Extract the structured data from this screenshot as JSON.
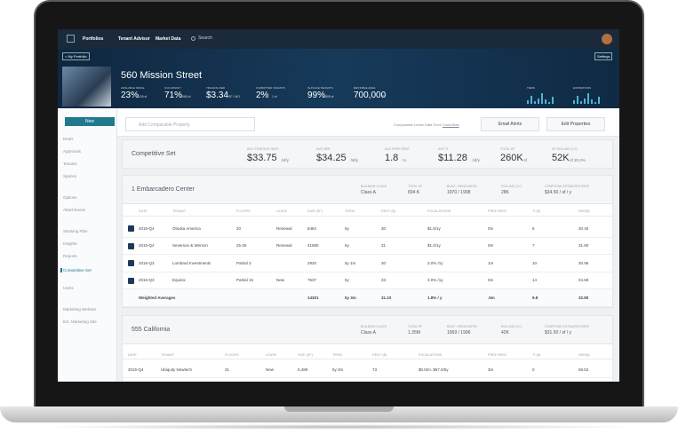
{
  "nav": {
    "items": [
      "Portfolios",
      "Tenant Advisor",
      "Market Data"
    ],
    "search": "Search"
  },
  "header": {
    "back": "< My Portfolio",
    "settings": "Settings",
    "title": "560 Mission Street",
    "stats": [
      {
        "label": "AVAILABLE SPACE",
        "value": "23%",
        "sub": "1108 sf"
      },
      {
        "label": "OCCUPANCY",
        "value": "71%",
        "sub": "4968 sf"
      },
      {
        "label": "TRAILING NER",
        "value": "$3.34",
        "sub": "SF / MO"
      },
      {
        "label": "COMMITTED TENANTS",
        "value": "2%",
        "sub": "1 sf"
      },
      {
        "label": "IN-PLACE TENANTS",
        "value": "99%",
        "sub": "4808 sf"
      },
      {
        "label": "RENTABLE AREA",
        "value": "700,000",
        "sub": "SF"
      }
    ],
    "charts": [
      "TIERS",
      "EXPIRATIONS"
    ]
  },
  "sidebar": {
    "button": "New",
    "items": [
      "Deals",
      "Approvals",
      "Tenants",
      "Spaces",
      "Options",
      "Attachments",
      "Stacking Plan",
      "Insights",
      "Reports",
      "Competitive Set",
      "Users",
      "Marketing Website",
      "Ext. Marketing Site"
    ],
    "active": "Competitive Set"
  },
  "toolbar": {
    "placeholder": "Add Comparable Property",
    "source": "Comparable Lease Data From",
    "source_link": "CompStak",
    "buttons": [
      "Email Alerts",
      "Edit Properties"
    ]
  },
  "summary": {
    "title": "Competitive Set",
    "metrics": [
      {
        "label": "AVG STARTING RENT",
        "value": "$33.75",
        "unit": "/sf/y"
      },
      {
        "label": "AVG NER",
        "value": "$34.25",
        "unit": "/sf/y"
      },
      {
        "label": "AVG FREE RENT",
        "value": "1.8",
        "unit": "m"
      },
      {
        "label": "AVG TI",
        "value": "$11.28",
        "unit": "/sf/y"
      },
      {
        "label": "TOTAL SF",
        "value": "260K",
        "unit": "sf"
      },
      {
        "label": "SF ROLLING (1Y)",
        "value": "52K",
        "unit": "sf 20.2%"
      }
    ]
  },
  "properties": [
    {
      "name": "1 Embarcadero Center",
      "facts": [
        {
          "label": "BUILDING CLASS",
          "value": "Class A"
        },
        {
          "label": "TOTAL SF",
          "value": "834 K"
        },
        {
          "label": "BUILT / RENOVATED",
          "value": "1970 / 1998"
        },
        {
          "label": "ROLLING (1Y)",
          "value": "28K"
        },
        {
          "label": "COMPSTAK ESTIMATED RENT",
          "value": "$34.50 / sf / y"
        }
      ],
      "columns": [
        "DATE",
        "TENANT",
        "FLOORS",
        "LEASE",
        "SIZE (SF)",
        "TERM",
        "RENT ($)",
        "ESCALATIONS",
        "FREE RENT",
        "TI ($)",
        "NER($)"
      ],
      "rows": [
        [
          "2015-Q4",
          "Otsuka America",
          "20",
          "Renewal",
          "8484",
          "5y",
          "30",
          "$1.5/1y",
          "0m",
          "6",
          "30.40"
        ],
        [
          "2015-Q4",
          "Severson & Werson",
          "25-26",
          "Renewal",
          "41580",
          "5y",
          "31",
          "$1.0/1y",
          "0m",
          "7",
          "31.80"
        ],
        [
          "2015-Q3",
          "Lombard Investments",
          "Partial 3",
          null,
          "2920",
          "5y 1m",
          "30",
          "3.0% /1y",
          "1m",
          "10",
          "30.96"
        ],
        [
          "2015-Q3",
          "Equinix",
          "Partial 15",
          "New",
          "7537",
          "5y",
          "33",
          "3.0% /1y",
          "0m",
          "14",
          "34.69"
        ]
      ],
      "totals": [
        "Weighted Averages",
        null,
        null,
        null,
        "14301",
        "5y 3m",
        "31.23",
        "1.8% / y",
        ".5m",
        "9.8",
        "32.80"
      ]
    },
    {
      "name": "555 California",
      "facts": [
        {
          "label": "BUILDING CLASS",
          "value": "Class A"
        },
        {
          "label": "TOTAL SF",
          "value": "1.35M"
        },
        {
          "label": "BUILT / RENOVATED",
          "value": "1969 / 1996"
        },
        {
          "label": "ROLLING (1Y)",
          "value": "42K"
        },
        {
          "label": "COMPSTAK ESTIMATED RENT",
          "value": "$31.50 / sf / y"
        }
      ],
      "columns": [
        "DATE",
        "TENANT",
        "FLOORS",
        "LEASE",
        "SIZE (SF)",
        "TERM",
        "RENT ($)",
        "ESCALATIONS",
        "FREE RENT",
        "TI ($)",
        "NER($)"
      ],
      "rows": [
        [
          "2015-Q4",
          "Ubiquity Newtech",
          "31",
          "New",
          "6,489",
          "5y 3m",
          "73",
          "$0.0/m. $67.0/5y",
          "3m",
          "0",
          "69.52"
        ]
      ]
    }
  ]
}
